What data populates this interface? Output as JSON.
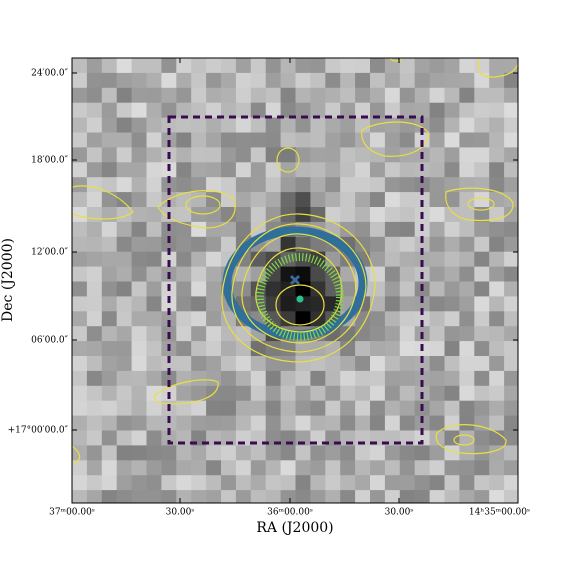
{
  "chart_data": {
    "type": "image",
    "x_axis": {
      "label": "RA (J2000)",
      "ticks": [
        "37ᵐ00.00ˢ",
        "30.00ˢ",
        "36ᵐ00.00ˢ",
        "30.00ˢ",
        "14ʰ35ᵐ00.00ˢ"
      ]
    },
    "y_axis": {
      "label": "Dec (J2000)",
      "ticks": [
        "24′00.0″",
        "18′00.0″",
        "12′00.0″",
        "06′00.0″",
        "+17°00′00.0″"
      ]
    }
  }
}
